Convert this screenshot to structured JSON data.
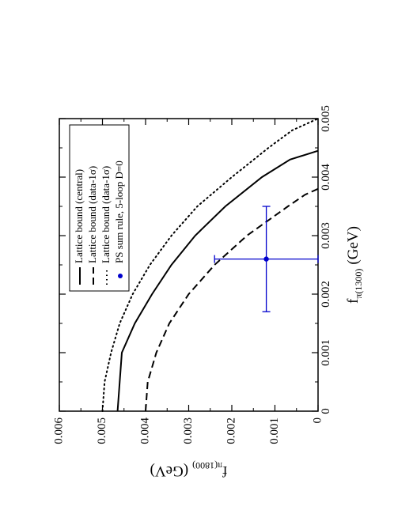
{
  "chart_data": {
    "type": "line",
    "orientation": "rotated-90-clockwise",
    "xlabel": "f",
    "xlabel_sub": "π(1300)",
    "xlabel_unit": "(GeV)",
    "ylabel": "f",
    "ylabel_sub": "π(1800)",
    "ylabel_unit": "(GeV)",
    "xlim": [
      0,
      0.005
    ],
    "ylim": [
      0,
      0.006
    ],
    "x_ticks": [
      "0",
      "0.001",
      "0.002",
      "0.003",
      "0.004",
      "0.005"
    ],
    "y_ticks": [
      "0",
      "0.001",
      "0.002",
      "0.003",
      "0.004",
      "0.005",
      "0.006"
    ],
    "grid": false,
    "legend_position": "top-right",
    "series": [
      {
        "name": "Lattice bound (central)",
        "style": "solid",
        "color": "#000000",
        "x": [
          0,
          0.0005,
          0.001,
          0.0015,
          0.002,
          0.0025,
          0.003,
          0.0035,
          0.004,
          0.0043,
          0.00445
        ],
        "y": [
          0.00465,
          0.0046,
          0.00455,
          0.00425,
          0.00385,
          0.0034,
          0.00285,
          0.00215,
          0.0013,
          0.00065,
          0
        ]
      },
      {
        "name": "Lattice bound (data-1σ)",
        "style": "dashed",
        "color": "#000000",
        "x": [
          0,
          0.0005,
          0.001,
          0.0015,
          0.002,
          0.0025,
          0.003,
          0.0035,
          0.0037,
          0.0038
        ],
        "y": [
          0.004,
          0.00395,
          0.00375,
          0.00345,
          0.003,
          0.0024,
          0.00165,
          0.0007,
          0.0003,
          0
        ]
      },
      {
        "name": "Lattice bound (data-1σ)",
        "style": "dotted",
        "color": "#000000",
        "x": [
          0,
          0.0005,
          0.001,
          0.0015,
          0.002,
          0.0025,
          0.003,
          0.0035,
          0.004,
          0.0045,
          0.0048,
          0.005
        ],
        "y": [
          0.005,
          0.00495,
          0.0048,
          0.0046,
          0.0043,
          0.0039,
          0.0034,
          0.0028,
          0.002,
          0.00115,
          0.0006,
          0
        ]
      }
    ],
    "points": [
      {
        "name": "PS sum rule, 5-loop D=0",
        "color": "#0000cc",
        "x": 0.0026,
        "y": 0.0012,
        "x_err": [
          0.0017,
          0.0035
        ],
        "y_err": [
          0.0,
          0.0024
        ]
      }
    ]
  }
}
